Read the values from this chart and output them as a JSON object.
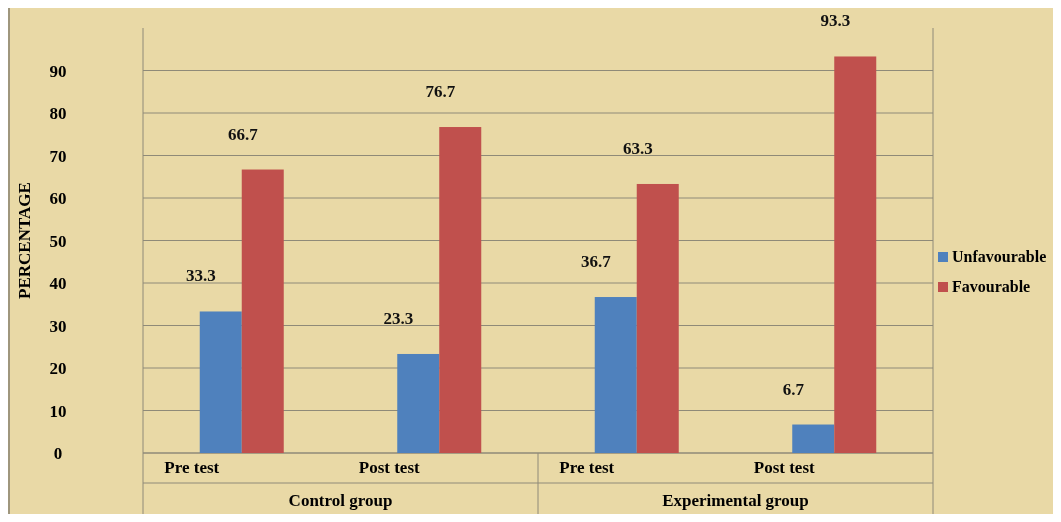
{
  "chart_data": {
    "type": "bar",
    "ylabel": "PERCENTAGE",
    "categories": [
      "Pre test",
      "Post test",
      "Pre test",
      "Post test"
    ],
    "series": [
      {
        "name": "Unfavourable",
        "color": "#4f81bd",
        "values": [
          33.3,
          23.3,
          36.7,
          6.7
        ]
      },
      {
        "name": "Favourable",
        "color": "#c0504d",
        "values": [
          66.7,
          76.7,
          63.3,
          93.3
        ]
      }
    ],
    "ylim": [
      0,
      100
    ],
    "yticks": [
      0,
      10,
      20,
      30,
      40,
      50,
      60,
      70,
      80,
      90
    ],
    "grid": "y",
    "legend": "right",
    "data_labels": true,
    "annotations": [
      "Control group",
      "Experimental group"
    ]
  }
}
